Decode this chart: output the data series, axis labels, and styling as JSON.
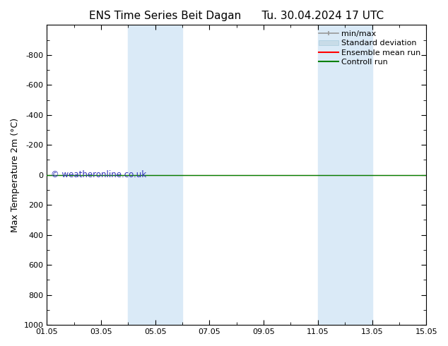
{
  "title_left": "ENS Time Series Beit Dagan",
  "title_right": "Tu. 30.04.2024 17 UTC",
  "ylabel": "Max Temperature 2m (°C)",
  "ylim_top": -1000,
  "ylim_bottom": 1000,
  "yticks": [
    -800,
    -600,
    -400,
    -200,
    0,
    200,
    400,
    600,
    800,
    1000
  ],
  "xtick_labels": [
    "01.05",
    "03.05",
    "05.05",
    "07.05",
    "09.05",
    "11.05",
    "13.05",
    "15.05"
  ],
  "xtick_positions": [
    0,
    2,
    4,
    6,
    8,
    10,
    12,
    14
  ],
  "x_total": 14,
  "shaded_bands": [
    {
      "x_start": 3,
      "x_end": 5
    },
    {
      "x_start": 10,
      "x_end": 12
    }
  ],
  "shaded_color": "#daeaf7",
  "horizontal_line_y": 0,
  "ensemble_mean_color": "#ff0000",
  "control_run_color": "#008000",
  "minmax_color": "#999999",
  "stddev_color": "#c8dce8",
  "watermark_text": "© weatheronline.co.uk",
  "watermark_color": "#3333bb",
  "background_color": "#ffffff",
  "plot_bg_color": "#f0f0f0",
  "legend_labels": [
    "min/max",
    "Standard deviation",
    "Ensemble mean run",
    "Controll run"
  ],
  "title_fontsize": 11,
  "axis_fontsize": 9,
  "tick_fontsize": 8,
  "legend_fontsize": 8
}
